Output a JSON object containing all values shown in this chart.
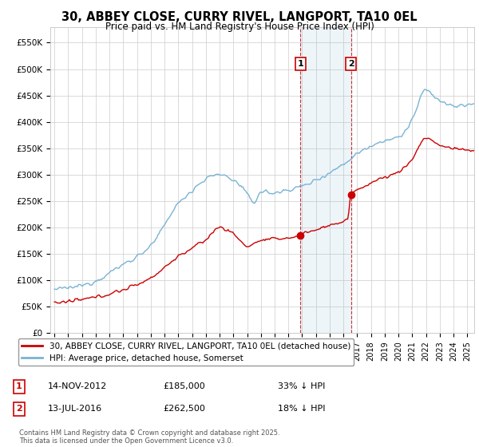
{
  "title": "30, ABBEY CLOSE, CURRY RIVEL, LANGPORT, TA10 0EL",
  "subtitle": "Price paid vs. HM Land Registry's House Price Index (HPI)",
  "background_color": "#ffffff",
  "grid_color": "#cccccc",
  "hpi_color": "#7ab3d4",
  "price_color": "#cc0000",
  "ylim": [
    0,
    580000
  ],
  "yticks": [
    0,
    50000,
    100000,
    150000,
    200000,
    250000,
    300000,
    350000,
    400000,
    450000,
    500000,
    550000
  ],
  "ytick_labels": [
    "£0",
    "£50K",
    "£100K",
    "£150K",
    "£200K",
    "£250K",
    "£300K",
    "£350K",
    "£400K",
    "£450K",
    "£500K",
    "£550K"
  ],
  "legend_entries": [
    "30, ABBEY CLOSE, CURRY RIVEL, LANGPORT, TA10 0EL (detached house)",
    "HPI: Average price, detached house, Somerset"
  ],
  "annotation1_date": "14-NOV-2012",
  "annotation1_price_str": "£185,000",
  "annotation1_price": 185000,
  "annotation1_hpi_pct": "33% ↓ HPI",
  "annotation1_year": 2012.875,
  "annotation2_date": "13-JUL-2016",
  "annotation2_price_str": "£262,500",
  "annotation2_price": 262500,
  "annotation2_hpi_pct": "18% ↓ HPI",
  "annotation2_year": 2016.542,
  "footer": "Contains HM Land Registry data © Crown copyright and database right 2025.\nThis data is licensed under the Open Government Licence v3.0.",
  "x_start_year": 1995,
  "x_end_year": 2025
}
